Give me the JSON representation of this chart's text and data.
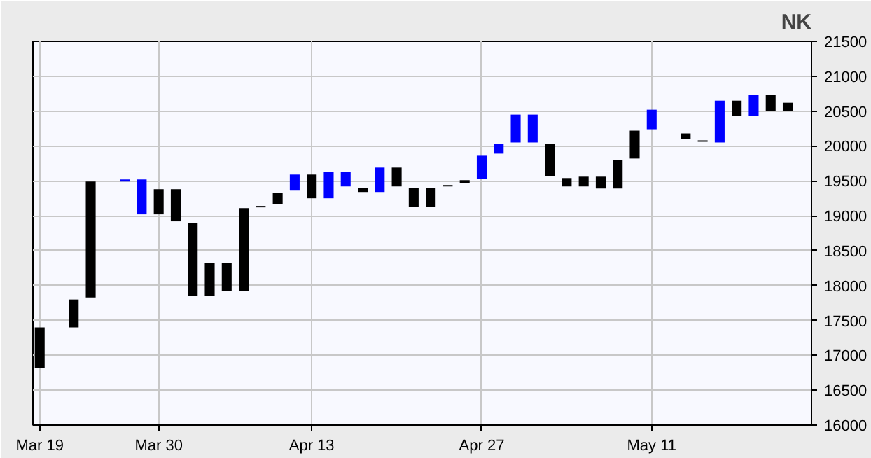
{
  "chart_data": {
    "type": "bar",
    "title": "NK",
    "categories": [
      "Mar 19",
      null,
      null,
      null,
      null,
      null,
      null,
      "Mar 30",
      null,
      null,
      null,
      null,
      null,
      null,
      null,
      null,
      "Apr 13",
      null,
      null,
      null,
      null,
      null,
      null,
      null,
      null,
      null,
      "Apr 27",
      null,
      null,
      null,
      null,
      null,
      null,
      null,
      null,
      null,
      "May 11",
      null,
      null,
      null,
      null,
      null,
      null,
      null,
      null
    ],
    "base": [
      16820,
      null,
      17400,
      17830,
      null,
      19490,
      19020,
      19020,
      18920,
      17850,
      17850,
      17920,
      17920,
      19120,
      19170,
      19360,
      19250,
      19250,
      19420,
      19340,
      19340,
      19420,
      19130,
      19130,
      19420,
      19470,
      19530,
      19890,
      20050,
      20050,
      19570,
      19420,
      19420,
      19390,
      19390,
      19820,
      20240,
      null,
      20100,
      20060,
      20050,
      20430,
      20430,
      20500,
      20500
    ],
    "values": [
      580,
      null,
      400,
      1660,
      null,
      30,
      500,
      360,
      460,
      1040,
      470,
      400,
      1190,
      20,
      160,
      230,
      340,
      380,
      210,
      60,
      350,
      270,
      270,
      270,
      20,
      40,
      330,
      140,
      400,
      400,
      460,
      120,
      140,
      170,
      410,
      400,
      280,
      null,
      80,
      20,
      600,
      220,
      300,
      230,
      120
    ],
    "colors": [
      "#000000",
      null,
      "#000000",
      "#000000",
      null,
      "#0000ff",
      "#0000ff",
      "#000000",
      "#000000",
      "#000000",
      "#000000",
      "#000000",
      "#000000",
      "#000000",
      "#000000",
      "#0000ff",
      "#000000",
      "#0000ff",
      "#0000ff",
      "#000000",
      "#0000ff",
      "#000000",
      "#000000",
      "#000000",
      "#000000",
      "#000000",
      "#0000ff",
      "#0000ff",
      "#0000ff",
      "#0000ff",
      "#000000",
      "#000000",
      "#000000",
      "#000000",
      "#000000",
      "#000000",
      "#0000ff",
      null,
      "#000000",
      "#000000",
      "#0000ff",
      "#000000",
      "#0000ff",
      "#000000",
      "#000000"
    ],
    "ylim": [
      16000,
      21500
    ],
    "yticks": [
      16000,
      16500,
      17000,
      17500,
      18000,
      18500,
      19000,
      19500,
      20000,
      20500,
      21000,
      21500
    ],
    "grid": true
  }
}
